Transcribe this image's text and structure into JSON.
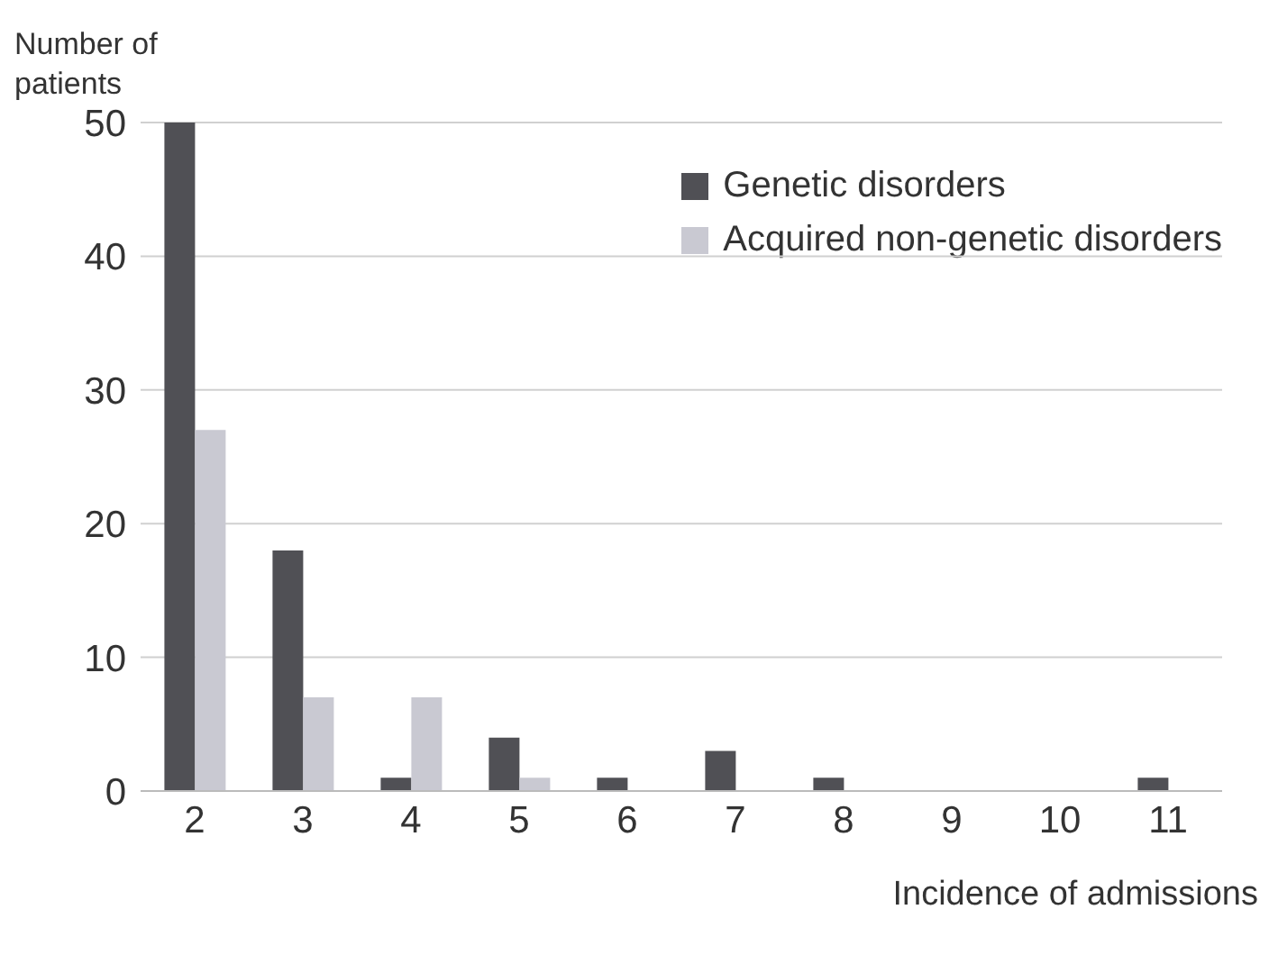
{
  "chart_data": {
    "type": "bar",
    "xlabel": "Incidence of admissions",
    "ylabel": "Number of patients",
    "categories": [
      "2",
      "3",
      "4",
      "5",
      "6",
      "7",
      "8",
      "9",
      "10",
      "11"
    ],
    "series": [
      {
        "name": "Genetic disorders",
        "color": "#505055",
        "values": [
          50,
          18,
          1,
          4,
          1,
          3,
          1,
          0,
          0,
          1
        ]
      },
      {
        "name": "Acquired non-genetic disorders",
        "color": "#c9c9d2",
        "values": [
          27,
          7,
          7,
          1,
          0,
          0,
          0,
          0,
          0,
          0
        ]
      }
    ],
    "ylim": [
      0,
      50
    ],
    "yticks": [
      0,
      10,
      20,
      30,
      40,
      50
    ],
    "grid": "y",
    "legend": "top right"
  }
}
